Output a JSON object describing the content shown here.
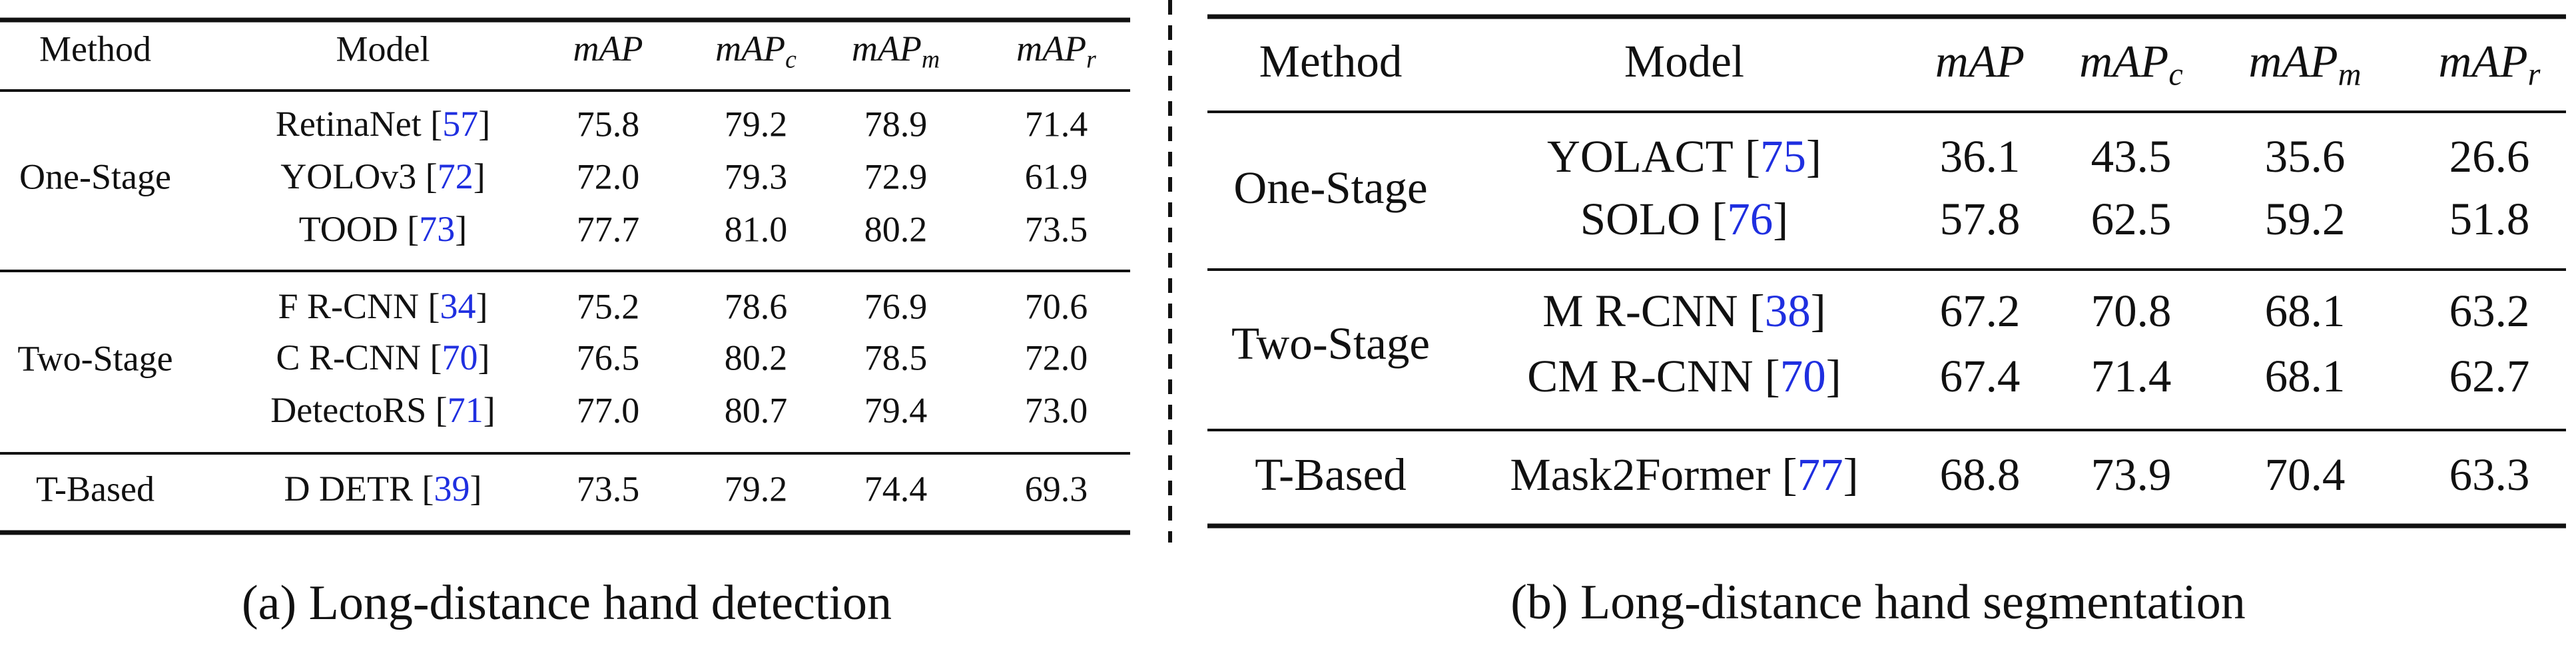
{
  "table_a": {
    "caption": "(a) Long-distance hand detection",
    "header": {
      "method": "Method",
      "model": "Model",
      "metrics": [
        {
          "main": "mAP",
          "sub": null
        },
        {
          "main": "mAP",
          "sub": "c"
        },
        {
          "main": "mAP",
          "sub": "m"
        },
        {
          "main": "mAP",
          "sub": "r"
        }
      ]
    },
    "groups": [
      {
        "method": "One-Stage",
        "rows": [
          {
            "model": "RetinaNet",
            "ref": "[57]",
            "values": [
              "75.8",
              "79.2",
              "78.9",
              "71.4"
            ]
          },
          {
            "model": "YOLOv3",
            "ref": "[72]",
            "values": [
              "72.0",
              "79.3",
              "72.9",
              "61.9"
            ]
          },
          {
            "model": "TOOD",
            "ref": "[73]",
            "values": [
              "77.7",
              "81.0",
              "80.2",
              "73.5"
            ]
          }
        ]
      },
      {
        "method": "Two-Stage",
        "rows": [
          {
            "model": "F R-CNN",
            "ref": "[34]",
            "values": [
              "75.2",
              "78.6",
              "76.9",
              "70.6"
            ]
          },
          {
            "model": "C R-CNN",
            "ref": "[70]",
            "values": [
              "76.5",
              "80.2",
              "78.5",
              "72.0"
            ]
          },
          {
            "model": "DetectoRS",
            "ref": "[71]",
            "values": [
              "77.0",
              "80.7",
              "79.4",
              "73.0"
            ]
          }
        ]
      },
      {
        "method": "T-Based",
        "rows": [
          {
            "model": "D DETR",
            "ref": "[39]",
            "values": [
              "73.5",
              "79.2",
              "74.4",
              "69.3"
            ]
          }
        ]
      }
    ]
  },
  "table_b": {
    "caption": "(b) Long-distance hand segmentation",
    "header": {
      "method": "Method",
      "model": "Model",
      "metrics": [
        {
          "main": "mAP",
          "sub": null
        },
        {
          "main": "mAP",
          "sub": "c"
        },
        {
          "main": "mAP",
          "sub": "m"
        },
        {
          "main": "mAP",
          "sub": "r"
        }
      ]
    },
    "groups": [
      {
        "method": "One-Stage",
        "rows": [
          {
            "model": "YOLACT",
            "ref": "[75]",
            "values": [
              "36.1",
              "43.5",
              "35.6",
              "26.6"
            ]
          },
          {
            "model": "SOLO",
            "ref": "[76]",
            "values": [
              "57.8",
              "62.5",
              "59.2",
              "51.8"
            ]
          }
        ]
      },
      {
        "method": "Two-Stage",
        "rows": [
          {
            "model": "M R-CNN",
            "ref": "[38]",
            "values": [
              "67.2",
              "70.8",
              "68.1",
              "63.2"
            ]
          },
          {
            "model": "CM R-CNN",
            "ref": "[70]",
            "values": [
              "67.4",
              "71.4",
              "68.1",
              "62.7"
            ]
          }
        ]
      },
      {
        "method": "T-Based",
        "rows": [
          {
            "model": "Mask2Former",
            "ref": "[77]",
            "values": [
              "68.8",
              "73.9",
              "70.4",
              "63.3"
            ]
          }
        ]
      }
    ]
  }
}
